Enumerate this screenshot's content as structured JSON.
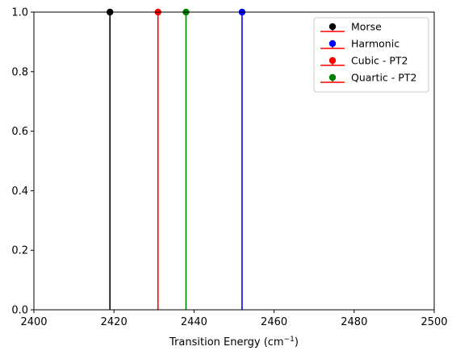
{
  "chart_data": {
    "type": "stem",
    "title": "",
    "xlabel_main": "Transition Energy (cm",
    "xlabel_sup": "−1",
    "xlabel_close": ")",
    "ylabel": "",
    "xlim": [
      2400,
      2500
    ],
    "ylim": [
      0,
      1
    ],
    "xticks": [
      "2400",
      "2420",
      "2440",
      "2460",
      "2480",
      "2500"
    ],
    "yticks": [
      "0.0",
      "0.2",
      "0.4",
      "0.6",
      "0.8",
      "1.0"
    ],
    "grid": false,
    "legend_position": "top-right",
    "series": [
      {
        "name": "Morse",
        "x": 2419,
        "y": 1.0,
        "color": "#000000"
      },
      {
        "name": "Harmonic",
        "x": 2452,
        "y": 1.0,
        "color": "#0000ff"
      },
      {
        "name": "Cubic - PT2",
        "x": 2431,
        "y": 1.0,
        "color": "#ff0000"
      },
      {
        "name": "Quartic - PT2",
        "x": 2438,
        "y": 1.0,
        "color": "#008000"
      }
    ],
    "legend_baseline_color": "#ff0000"
  }
}
